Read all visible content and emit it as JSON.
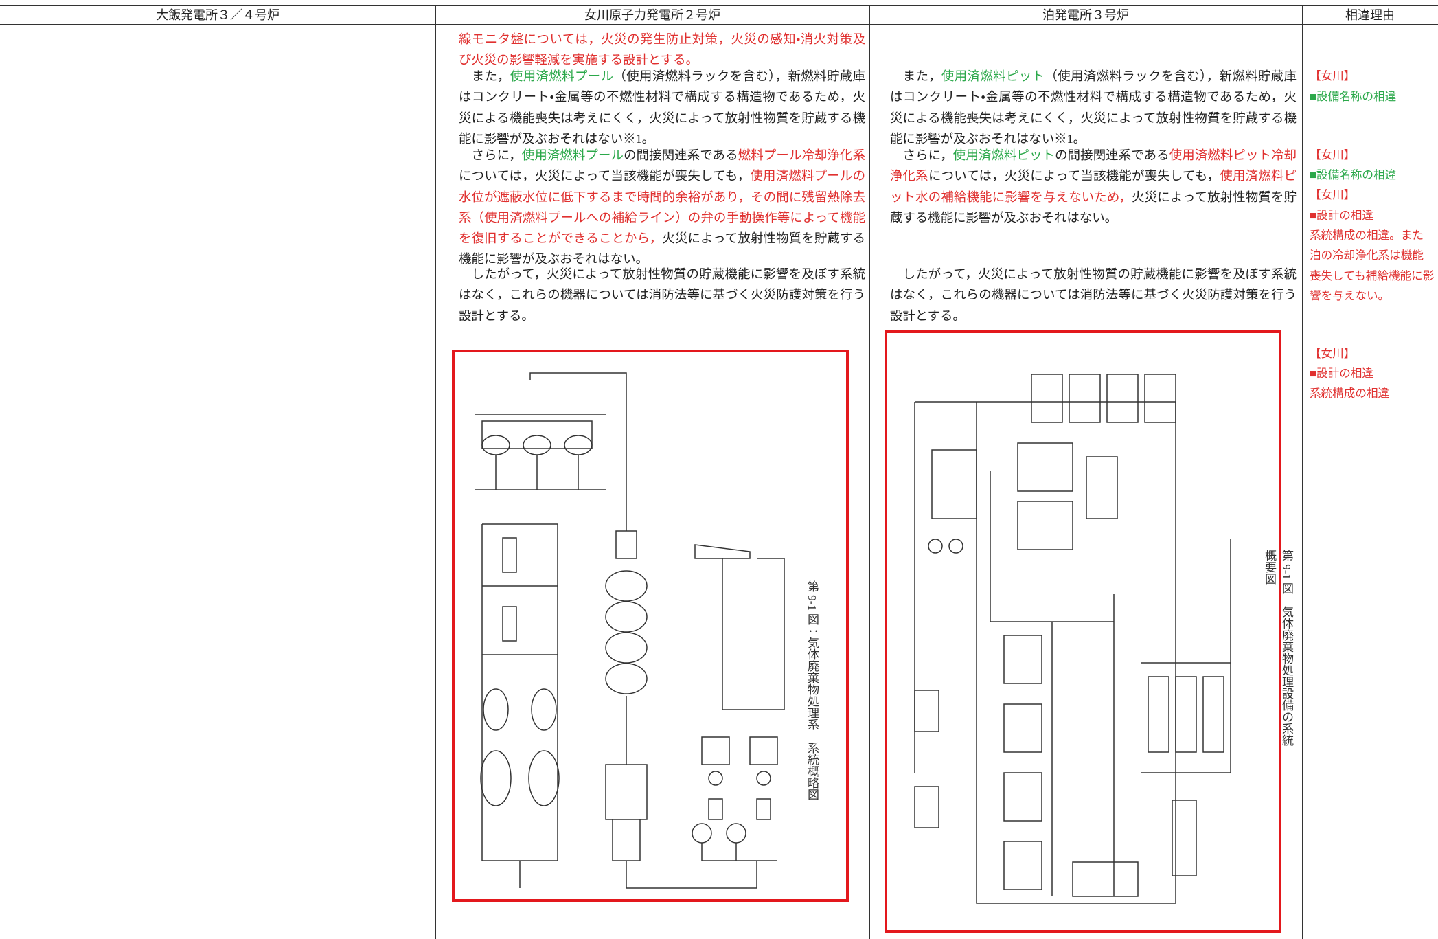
{
  "header": {
    "columns": [
      "大飯発電所３／４号炉",
      "女川原子力発電所２号炉",
      "泊発電所３号炉",
      "相違理由"
    ]
  },
  "onagawa": {
    "paragraphs": [
      {
        "runs": [
          {
            "text": "線モニタ盤については，火災の発生防止対策，火災の感知・消火対策及び火災の影響軽減を実施する設計とする。",
            "color": "#e0302f"
          }
        ]
      },
      {
        "runs": [
          {
            "text": "　また，",
            "color": "#222222"
          },
          {
            "text": "使用済燃料プール",
            "color": "#2ba84a"
          },
          {
            "text": "（使用済燃料ラックを含む），新燃料貯蔵庫はコンクリート・金属等の不燃性材料で構成する構造物であるため，火災による機能喪失は考えにくく，火災によって放射性物質を貯蔵する機能に影響が及ぶおそれはない※1。",
            "color": "#222222"
          }
        ]
      },
      {
        "runs": [
          {
            "text": "　さらに，",
            "color": "#222222"
          },
          {
            "text": "使用済燃料プール",
            "color": "#2ba84a"
          },
          {
            "text": "の間接関連系である",
            "color": "#222222"
          },
          {
            "text": "燃料プール冷却浄化系",
            "color": "#e0302f"
          },
          {
            "text": "については，火災によって当該機能が喪失しても，",
            "color": "#222222"
          },
          {
            "text": "使用済燃料プールの水位が遮蔽水位に低下するまで時間的余裕があり，その間に残留熱除去系（使用済燃料プールへの補給ライン）の弁の手動操作等によって機能を復旧することができることから，",
            "color": "#e0302f"
          },
          {
            "text": "火災によって放射性物質を貯蔵する機能に影響が及ぶおそれはない。",
            "color": "#222222"
          }
        ]
      },
      {
        "runs": [
          {
            "text": "　したがって，火災によって放射性物質の貯蔵機能に影響を及ぼす系統はなく，これらの機器については消防法等に基づく火災防護対策を行う設計とする。",
            "color": "#222222"
          }
        ]
      }
    ],
    "figure_caption": "第 9-1 図：気体廃棄物処理系　系統概略図"
  },
  "tomari": {
    "paragraphs": [
      {
        "runs": [
          {
            "text": "　また，",
            "color": "#222222"
          },
          {
            "text": "使用済燃料ピット",
            "color": "#2ba84a"
          },
          {
            "text": "（使用済燃料ラックを含む），新燃料貯蔵庫はコンクリート・金属等の不燃性材料で構成する構造物であるため，火災による機能喪失は考えにくく，火災によって放射性物質を貯蔵する機能に影響が及ぶおそれはない※1。",
            "color": "#222222"
          }
        ]
      },
      {
        "runs": [
          {
            "text": "　さらに，",
            "color": "#222222"
          },
          {
            "text": "使用済燃料ピット",
            "color": "#2ba84a"
          },
          {
            "text": "の間接関連系である",
            "color": "#222222"
          },
          {
            "text": "使用済燃料ピット冷却浄化系",
            "color": "#e0302f"
          },
          {
            "text": "については，火災によって当該機能が喪失しても，",
            "color": "#222222"
          },
          {
            "text": "使用済燃料ピット水の補給機能に影響を与えないため，",
            "color": "#e0302f"
          },
          {
            "text": "火災によって放射性物質を貯蔵する機能に影響が及ぶおそれはない。",
            "color": "#222222"
          }
        ]
      },
      {
        "runs": [
          {
            "text": "　したがって，火災によって放射性物質の貯蔵機能に影響を及ぼす系統はなく，これらの機器については消防法等に基づく火災防護対策を行う設計とする。",
            "color": "#222222"
          }
        ]
      }
    ],
    "figure_caption": "第 9-1 図　気体廃棄物処理設備の系統概要図"
  },
  "notes": [
    {
      "text": "【女川】",
      "color": "#e0302f"
    },
    {
      "text": "■設備名称の相違",
      "color": "#2ba84a"
    },
    {
      "text": "【女川】",
      "color": "#e0302f"
    },
    {
      "text": "■設備名称の相違",
      "color": "#2ba84a"
    },
    {
      "text": "【女川】",
      "color": "#e0302f"
    },
    {
      "text": "■設計の相違",
      "color": "#e0302f"
    },
    {
      "text": "系統構成の相違。また泊の冷却浄化系は機能喪失しても補給機能に影響を与えない。",
      "color": "#e0302f"
    },
    {
      "text": "【女川】",
      "color": "#e0302f"
    },
    {
      "text": "■設計の相違",
      "color": "#e0302f"
    },
    {
      "text": "系統構成の相違",
      "color": "#e0302f"
    }
  ]
}
